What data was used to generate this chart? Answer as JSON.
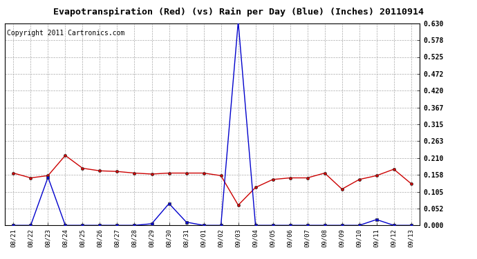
{
  "title": "Evapotranspiration (Red) (vs) Rain per Day (Blue) (Inches) 20110914",
  "copyright": "Copyright 2011 Cartronics.com",
  "x_labels": [
    "08/21",
    "08/22",
    "08/23",
    "08/24",
    "08/25",
    "08/26",
    "08/27",
    "08/28",
    "08/29",
    "08/30",
    "08/31",
    "09/01",
    "09/02",
    "09/03",
    "09/04",
    "09/05",
    "09/06",
    "09/07",
    "09/08",
    "09/09",
    "09/10",
    "09/11",
    "09/12",
    "09/13"
  ],
  "red_values": [
    0.163,
    0.148,
    0.155,
    0.218,
    0.178,
    0.17,
    0.168,
    0.163,
    0.16,
    0.163,
    0.163,
    0.163,
    0.155,
    0.063,
    0.118,
    0.143,
    0.148,
    0.148,
    0.163,
    0.113,
    0.143,
    0.155,
    0.175,
    0.13
  ],
  "blue_values": [
    0.0,
    0.0,
    0.15,
    0.0,
    0.0,
    0.0,
    0.0,
    0.0,
    0.005,
    0.068,
    0.01,
    0.0,
    0.0,
    0.635,
    0.0,
    0.0,
    0.0,
    0.0,
    0.0,
    0.0,
    0.0,
    0.018,
    0.0,
    0.0
  ],
  "ylim": [
    0.0,
    0.63
  ],
  "yticks": [
    0.0,
    0.052,
    0.105,
    0.158,
    0.21,
    0.263,
    0.315,
    0.367,
    0.42,
    0.472,
    0.525,
    0.578,
    0.63
  ],
  "background_color": "#ffffff",
  "plot_bg_color": "#ffffff",
  "grid_color": "#aaaaaa",
  "red_color": "#cc0000",
  "blue_color": "#0000cc",
  "title_fontsize": 9.5,
  "copyright_fontsize": 7
}
